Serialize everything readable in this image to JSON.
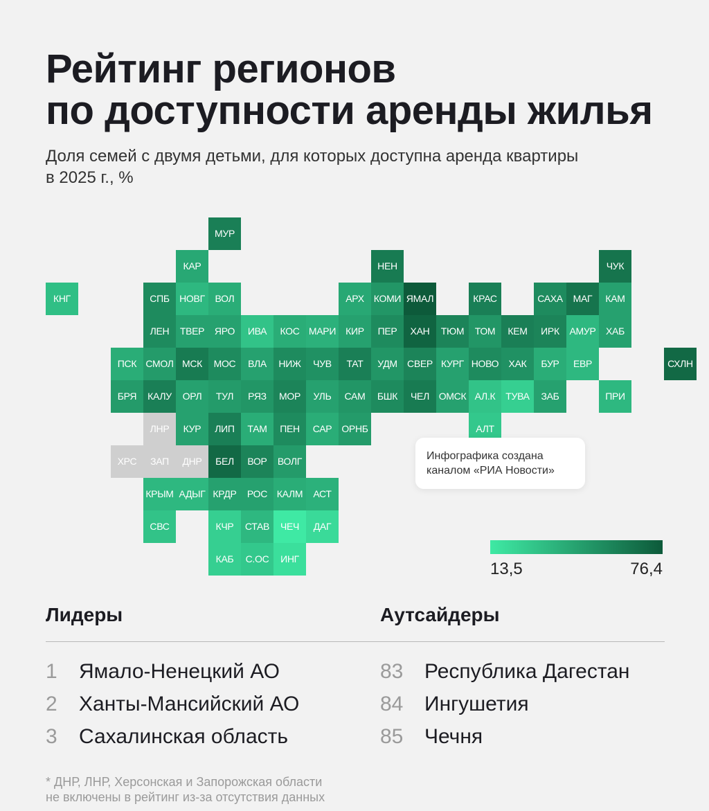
{
  "title_lines": [
    "Рейтинг регионов",
    "по доступности аренды жилья"
  ],
  "subtitle_lines": [
    "Доля семей с двумя детьми, для которых доступна аренда квартиры",
    "в 2025 г., %"
  ],
  "note_lines": [
    "Инфографика создана",
    "каналом «РИА Новости»"
  ],
  "colors": {
    "scale_min": "#3fe9a4",
    "scale_max": "#0d5a3a",
    "no_data": "#cfcfcf",
    "text_on_tile": "#ffffff"
  },
  "legend": {
    "min_label": "13,5",
    "max_label": "76,4"
  },
  "leaders": {
    "heading": "Лидеры",
    "items": [
      {
        "rank": "1",
        "name": "Ямало-Ненецкий АО"
      },
      {
        "rank": "2",
        "name": "Ханты-Мансийский АО"
      },
      {
        "rank": "3",
        "name": "Сахалинская область"
      }
    ]
  },
  "outsiders": {
    "heading": "Аутсайдеры",
    "items": [
      {
        "rank": "83",
        "name": "Республика Дагестан"
      },
      {
        "rank": "84",
        "name": "Ингушетия"
      },
      {
        "rank": "85",
        "name": "Чечня"
      }
    ]
  },
  "footnote_lines": [
    "* ДНР, ЛНР, Херсонская и Запорожская области",
    "не включены в рейтинг из-за отсутствия данных"
  ],
  "chart_data": {
    "type": "heatmap",
    "title": "Рейтинг регионов по доступности аренды жилья",
    "subtitle": "Доля семей с двумя детьми, для которых доступна аренда квартиры в 2025 г., %",
    "value_range": [
      13.5,
      76.4
    ],
    "no_data_note": "ДНР, ЛНР, Херсонская и Запорожская области не включены в рейтинг",
    "regions": [
      {
        "code": "МУР",
        "row": 0,
        "col": 5,
        "value": 60
      },
      {
        "code": "КАР",
        "row": 1,
        "col": 4,
        "value": 42
      },
      {
        "code": "НЕН",
        "row": 1,
        "col": 10,
        "value": 62
      },
      {
        "code": "ЧУК",
        "row": 1,
        "col": 17,
        "value": 65
      },
      {
        "code": "КНГ",
        "row": 2,
        "col": 0,
        "value": 32
      },
      {
        "code": "СПБ",
        "row": 2,
        "col": 3,
        "value": 55
      },
      {
        "code": "НОВГ",
        "row": 2,
        "col": 4,
        "value": 35
      },
      {
        "code": "ВОЛ",
        "row": 2,
        "col": 5,
        "value": 40
      },
      {
        "code": "АРХ",
        "row": 2,
        "col": 9,
        "value": 42
      },
      {
        "code": "КОМИ",
        "row": 2,
        "col": 10,
        "value": 50
      },
      {
        "code": "ЯМАЛ",
        "row": 2,
        "col": 11,
        "value": 76.4
      },
      {
        "code": "КРАС",
        "row": 2,
        "col": 13,
        "value": 60
      },
      {
        "code": "САХА",
        "row": 2,
        "col": 15,
        "value": 55
      },
      {
        "code": "МАГ",
        "row": 2,
        "col": 16,
        "value": 65
      },
      {
        "code": "КАМ",
        "row": 2,
        "col": 17,
        "value": 45
      },
      {
        "code": "ЛЕН",
        "row": 3,
        "col": 3,
        "value": 55
      },
      {
        "code": "ТВЕР",
        "row": 3,
        "col": 4,
        "value": 45
      },
      {
        "code": "ЯРО",
        "row": 3,
        "col": 5,
        "value": 45
      },
      {
        "code": "ИВА",
        "row": 3,
        "col": 6,
        "value": 30
      },
      {
        "code": "КОС",
        "row": 3,
        "col": 7,
        "value": 40
      },
      {
        "code": "МАРИ",
        "row": 3,
        "col": 8,
        "value": 38
      },
      {
        "code": "КИР",
        "row": 3,
        "col": 9,
        "value": 45
      },
      {
        "code": "ПЕР",
        "row": 3,
        "col": 10,
        "value": 55
      },
      {
        "code": "ХАН",
        "row": 3,
        "col": 11,
        "value": 72
      },
      {
        "code": "ТЮМ",
        "row": 3,
        "col": 12,
        "value": 58
      },
      {
        "code": "ТОМ",
        "row": 3,
        "col": 13,
        "value": 50
      },
      {
        "code": "КЕМ",
        "row": 3,
        "col": 14,
        "value": 60
      },
      {
        "code": "ИРК",
        "row": 3,
        "col": 15,
        "value": 58
      },
      {
        "code": "АМУР",
        "row": 3,
        "col": 16,
        "value": 35
      },
      {
        "code": "ХАБ",
        "row": 3,
        "col": 17,
        "value": 45
      },
      {
        "code": "ПСК",
        "row": 4,
        "col": 2,
        "value": 40
      },
      {
        "code": "СМОЛ",
        "row": 4,
        "col": 3,
        "value": 48
      },
      {
        "code": "МСК",
        "row": 4,
        "col": 4,
        "value": 62
      },
      {
        "code": "МОС",
        "row": 4,
        "col": 5,
        "value": 55
      },
      {
        "code": "ВЛА",
        "row": 4,
        "col": 6,
        "value": 45
      },
      {
        "code": "НИЖ",
        "row": 4,
        "col": 7,
        "value": 55
      },
      {
        "code": "ЧУВ",
        "row": 4,
        "col": 8,
        "value": 52
      },
      {
        "code": "ТАТ",
        "row": 4,
        "col": 9,
        "value": 60
      },
      {
        "code": "УДМ",
        "row": 4,
        "col": 10,
        "value": 50
      },
      {
        "code": "СВЕР",
        "row": 4,
        "col": 11,
        "value": 58
      },
      {
        "code": "КУРГ",
        "row": 4,
        "col": 12,
        "value": 45
      },
      {
        "code": "НОВО",
        "row": 4,
        "col": 13,
        "value": 55
      },
      {
        "code": "ХАК",
        "row": 4,
        "col": 14,
        "value": 52
      },
      {
        "code": "БУР",
        "row": 4,
        "col": 15,
        "value": 40
      },
      {
        "code": "ЕВР",
        "row": 4,
        "col": 16,
        "value": 35
      },
      {
        "code": "СХЛН",
        "row": 4,
        "col": 19,
        "value": 70
      },
      {
        "code": "БРЯ",
        "row": 5,
        "col": 2,
        "value": 48
      },
      {
        "code": "КАЛУ",
        "row": 5,
        "col": 3,
        "value": 60
      },
      {
        "code": "ОРЛ",
        "row": 5,
        "col": 4,
        "value": 45
      },
      {
        "code": "ТУЛ",
        "row": 5,
        "col": 5,
        "value": 48
      },
      {
        "code": "РЯЗ",
        "row": 5,
        "col": 6,
        "value": 50
      },
      {
        "code": "МОР",
        "row": 5,
        "col": 7,
        "value": 58
      },
      {
        "code": "УЛЬ",
        "row": 5,
        "col": 8,
        "value": 45
      },
      {
        "code": "САМ",
        "row": 5,
        "col": 9,
        "value": 50
      },
      {
        "code": "БШК",
        "row": 5,
        "col": 10,
        "value": 55
      },
      {
        "code": "ЧЕЛ",
        "row": 5,
        "col": 11,
        "value": 62
      },
      {
        "code": "ОМСК",
        "row": 5,
        "col": 12,
        "value": 45
      },
      {
        "code": "АЛ.К",
        "row": 5,
        "col": 13,
        "value": 30
      },
      {
        "code": "ТУВА",
        "row": 5,
        "col": 14,
        "value": 25
      },
      {
        "code": "ЗАБ",
        "row": 5,
        "col": 15,
        "value": 45
      },
      {
        "code": "ПРИ",
        "row": 5,
        "col": 17,
        "value": 35
      },
      {
        "code": "ЛНР",
        "row": 6,
        "col": 3,
        "value": null
      },
      {
        "code": "КУР",
        "row": 6,
        "col": 4,
        "value": 45
      },
      {
        "code": "ЛИП",
        "row": 6,
        "col": 5,
        "value": 60
      },
      {
        "code": "ТАМ",
        "row": 6,
        "col": 6,
        "value": 40
      },
      {
        "code": "ПЕН",
        "row": 6,
        "col": 7,
        "value": 55
      },
      {
        "code": "САР",
        "row": 6,
        "col": 8,
        "value": 40
      },
      {
        "code": "ОРНБ",
        "row": 6,
        "col": 9,
        "value": 48
      },
      {
        "code": "АЛТ",
        "row": 6,
        "col": 13,
        "value": 28
      },
      {
        "code": "ХРС",
        "row": 7,
        "col": 2,
        "value": null
      },
      {
        "code": "ЗАП",
        "row": 7,
        "col": 3,
        "value": null
      },
      {
        "code": "ДНР",
        "row": 7,
        "col": 4,
        "value": null
      },
      {
        "code": "БЕЛ",
        "row": 7,
        "col": 5,
        "value": 70
      },
      {
        "code": "ВОР",
        "row": 7,
        "col": 6,
        "value": 58
      },
      {
        "code": "ВОЛГ",
        "row": 7,
        "col": 7,
        "value": 48
      },
      {
        "code": "КРЫМ",
        "row": 8,
        "col": 3,
        "value": 35
      },
      {
        "code": "АДЫГ",
        "row": 8,
        "col": 4,
        "value": 35
      },
      {
        "code": "КРДР",
        "row": 8,
        "col": 5,
        "value": 45
      },
      {
        "code": "РОС",
        "row": 8,
        "col": 6,
        "value": 45
      },
      {
        "code": "КАЛМ",
        "row": 8,
        "col": 7,
        "value": 40
      },
      {
        "code": "АСТ",
        "row": 8,
        "col": 8,
        "value": 38
      },
      {
        "code": "СВС",
        "row": 9,
        "col": 3,
        "value": 30
      },
      {
        "code": "КЧР",
        "row": 9,
        "col": 5,
        "value": 25
      },
      {
        "code": "СТАВ",
        "row": 9,
        "col": 6,
        "value": 35
      },
      {
        "code": "ЧЕЧ",
        "row": 9,
        "col": 7,
        "value": 13.5
      },
      {
        "code": "ДАГ",
        "row": 9,
        "col": 8,
        "value": 20
      },
      {
        "code": "КАБ",
        "row": 10,
        "col": 5,
        "value": 25
      },
      {
        "code": "С.ОС",
        "row": 10,
        "col": 6,
        "value": 28
      },
      {
        "code": "ИНГ",
        "row": 10,
        "col": 7,
        "value": 18
      }
    ]
  }
}
